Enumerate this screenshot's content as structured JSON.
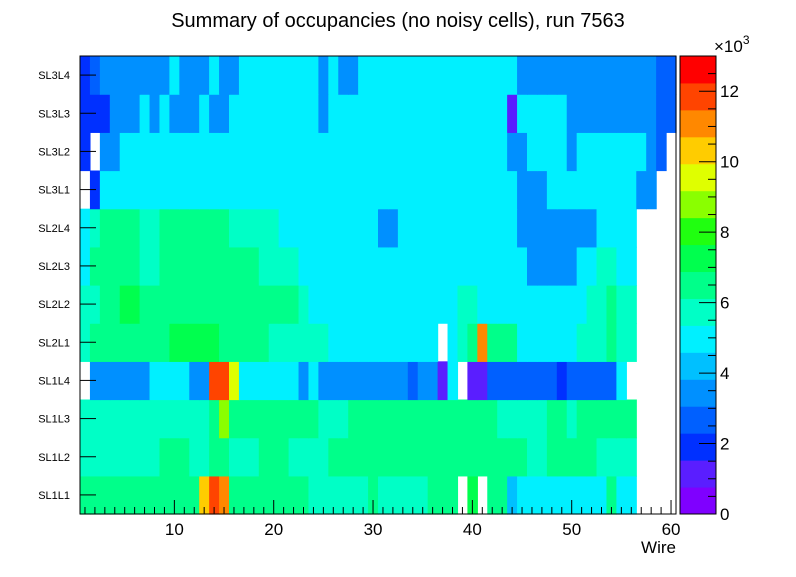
{
  "chart_data": {
    "type": "heatmap",
    "title": "Summary of occupancies (no noisy cells), run 7563",
    "xlabel": "Wire",
    "ylabel": "",
    "xlim": [
      0.5,
      60.5
    ],
    "x_ticks": [
      "10",
      "20",
      "30",
      "40",
      "50",
      "60"
    ],
    "x_tick_values": [
      10,
      20,
      30,
      40,
      50,
      60
    ],
    "y_categories": [
      "SL1L1",
      "SL1L2",
      "SL1L3",
      "SL1L4",
      "SL2L1",
      "SL2L2",
      "SL2L3",
      "SL2L4",
      "SL3L1",
      "SL3L2",
      "SL3L3",
      "SL3L4"
    ],
    "colorbar": {
      "min": 0,
      "max": 13,
      "tick_labels": [
        "0",
        "2",
        "4",
        "6",
        "8",
        "10",
        "12"
      ],
      "tick_values": [
        0,
        2,
        4,
        6,
        8,
        10,
        12
      ],
      "exponent_base": "×10",
      "exponent_power": "3",
      "palette": [
        "#7f00ff",
        "#5a1eff",
        "#0030ff",
        "#0060ff",
        "#0090ff",
        "#00c0ff",
        "#00f0ff",
        "#00ffc6",
        "#00ff8a",
        "#00ff4e",
        "#20ff10",
        "#8aff00",
        "#dfff00",
        "#ffcc00",
        "#ff8800",
        "#ff4400",
        "#ff0000"
      ]
    },
    "grid": false,
    "legend": "none",
    "rows": {
      "SL1L1": [
        6.2,
        6.2,
        6.2,
        6.2,
        6.8,
        6.8,
        6.8,
        6.8,
        6.8,
        6.8,
        6.8,
        6.8,
        10.5,
        12.0,
        11.0,
        6.2,
        6.2,
        6.2,
        6.2,
        6.2,
        6.2,
        6.2,
        6.2,
        5.4,
        5.4,
        5.4,
        5.4,
        5.4,
        5.4,
        6.2,
        5.4,
        5.4,
        5.4,
        5.4,
        5.4,
        6.2,
        6.2,
        6.2,
        null,
        7.5,
        null,
        6.2,
        6.2,
        4.5,
        5.2,
        5.2,
        5.2,
        5.2,
        5.2,
        5.2,
        5.2,
        5.2,
        5.2,
        6.2,
        5.2,
        5.2,
        null,
        null,
        null,
        null
      ],
      "SL1L2": [
        5.5,
        5.5,
        5.5,
        5.5,
        5.5,
        5.5,
        5.5,
        5.5,
        6.2,
        6.2,
        6.2,
        5.5,
        5.5,
        6.6,
        6.6,
        5.5,
        5.5,
        5.5,
        6.6,
        6.6,
        6.6,
        5.5,
        5.5,
        5.5,
        5.5,
        6.2,
        6.2,
        6.2,
        6.2,
        6.2,
        6.2,
        6.2,
        6.2,
        6.2,
        6.2,
        6.2,
        6.2,
        6.2,
        6.6,
        6.2,
        6.2,
        6.2,
        6.2,
        6.2,
        6.2,
        5.5,
        5.5,
        6.6,
        6.6,
        6.6,
        6.2,
        6.2,
        5.5,
        5.5,
        5.5,
        5.5,
        null,
        null,
        null,
        null
      ],
      "SL1L3": [
        5.5,
        5.8,
        5.8,
        5.8,
        5.8,
        5.8,
        5.8,
        5.8,
        5.8,
        5.8,
        5.8,
        5.8,
        5.8,
        6.4,
        9.0,
        6.2,
        6.2,
        6.2,
        6.2,
        6.2,
        6.2,
        6.2,
        6.2,
        6.2,
        5.8,
        5.8,
        5.8,
        6.2,
        6.2,
        6.2,
        6.2,
        6.2,
        6.2,
        6.2,
        6.2,
        6.2,
        6.2,
        6.2,
        6.2,
        6.2,
        6.2,
        6.2,
        5.8,
        5.8,
        5.8,
        5.8,
        5.8,
        6.2,
        6.2,
        5.8,
        6.2,
        6.2,
        6.2,
        6.2,
        6.2,
        6.2,
        null,
        null,
        null,
        null
      ],
      "SL1L4": [
        null,
        3.8,
        3.8,
        3.8,
        3.8,
        3.8,
        3.8,
        4.7,
        4.7,
        4.7,
        4.7,
        3.8,
        3.8,
        12.0,
        11.5,
        9.8,
        4.7,
        4.7,
        4.7,
        4.7,
        4.7,
        4.7,
        3.8,
        4.7,
        3.8,
        3.8,
        3.8,
        3.8,
        3.8,
        3.8,
        3.8,
        3.8,
        3.8,
        2.8,
        3.8,
        3.8,
        1.5,
        4.7,
        null,
        1.2,
        1.2,
        2.8,
        2.8,
        2.8,
        2.8,
        2.8,
        2.8,
        2.8,
        1.8,
        2.8,
        2.8,
        2.8,
        2.8,
        2.8,
        4.7,
        null,
        null,
        null,
        null,
        null
      ],
      "SL2L1": [
        5.5,
        6.8,
        6.8,
        6.8,
        6.8,
        6.8,
        6.2,
        6.2,
        6.2,
        7.0,
        7.0,
        7.0,
        7.0,
        7.0,
        6.2,
        6.2,
        6.2,
        6.2,
        6.2,
        5.5,
        5.5,
        5.5,
        5.5,
        5.5,
        5.5,
        4.8,
        4.8,
        4.8,
        4.8,
        4.8,
        4.8,
        4.8,
        4.8,
        4.8,
        4.8,
        4.8,
        null,
        5.0,
        5.5,
        6.2,
        11.0,
        6.2,
        6.2,
        6.2,
        4.8,
        4.8,
        4.8,
        4.8,
        4.8,
        4.8,
        5.5,
        5.5,
        5.5,
        6.2,
        5.5,
        5.5,
        null,
        null,
        null,
        null
      ],
      "SL2L2": [
        5.5,
        5.8,
        6.2,
        6.2,
        7.0,
        7.0,
        6.2,
        6.2,
        6.5,
        6.2,
        6.2,
        6.5,
        6.5,
        6.5,
        6.5,
        6.5,
        6.5,
        6.5,
        6.5,
        6.5,
        6.2,
        6.2,
        5.5,
        4.8,
        4.8,
        4.8,
        4.8,
        4.8,
        4.8,
        4.8,
        4.8,
        4.8,
        4.8,
        4.8,
        4.8,
        4.8,
        4.8,
        4.8,
        5.5,
        5.5,
        4.8,
        4.8,
        4.8,
        4.8,
        4.8,
        4.8,
        4.8,
        4.8,
        4.8,
        4.8,
        4.8,
        5.5,
        5.5,
        6.2,
        5.5,
        5.5,
        null,
        null,
        null,
        null
      ],
      "SL2L3": [
        5.2,
        6.2,
        6.2,
        6.2,
        6.2,
        6.2,
        5.8,
        5.8,
        6.2,
        6.2,
        6.2,
        6.2,
        6.2,
        6.2,
        6.2,
        6.2,
        6.2,
        6.2,
        5.8,
        5.8,
        5.8,
        5.8,
        4.8,
        4.8,
        4.8,
        4.8,
        4.8,
        4.8,
        4.8,
        4.8,
        4.8,
        4.8,
        4.8,
        4.8,
        4.8,
        4.8,
        4.8,
        4.8,
        4.8,
        4.8,
        4.8,
        4.8,
        4.8,
        4.8,
        4.8,
        3.8,
        3.8,
        3.8,
        3.8,
        3.8,
        4.8,
        4.8,
        5.5,
        5.5,
        4.8,
        4.8,
        null,
        null,
        null,
        null
      ],
      "SL2L4": [
        5.2,
        5.8,
        6.2,
        6.2,
        6.2,
        6.2,
        5.8,
        5.8,
        6.2,
        6.2,
        6.2,
        6.2,
        6.2,
        6.2,
        6.2,
        5.8,
        5.8,
        5.8,
        5.8,
        5.8,
        5.2,
        5.2,
        4.8,
        4.8,
        4.8,
        4.8,
        4.8,
        4.8,
        4.8,
        4.8,
        3.8,
        3.8,
        4.8,
        4.8,
        4.8,
        4.8,
        4.8,
        4.8,
        4.8,
        4.8,
        4.8,
        4.8,
        4.8,
        4.8,
        3.8,
        3.8,
        3.8,
        3.8,
        3.8,
        3.8,
        3.8,
        3.8,
        4.8,
        4.8,
        4.8,
        4.8,
        null,
        null,
        null,
        null
      ],
      "SL3L1": [
        null,
        2.2,
        4.8,
        4.8,
        4.8,
        4.8,
        4.8,
        4.8,
        4.8,
        4.8,
        4.8,
        4.8,
        4.8,
        4.8,
        4.8,
        4.8,
        4.8,
        5.3,
        5.3,
        5.3,
        4.8,
        4.8,
        4.8,
        4.8,
        4.8,
        4.8,
        4.8,
        4.8,
        4.8,
        5.3,
        4.8,
        4.8,
        5.3,
        4.8,
        4.8,
        4.8,
        4.8,
        5.3,
        5.3,
        4.8,
        4.8,
        4.8,
        4.8,
        4.8,
        3.8,
        3.8,
        3.8,
        4.8,
        4.8,
        4.8,
        4.8,
        4.8,
        4.8,
        4.8,
        4.8,
        4.8,
        3.8,
        3.8,
        null,
        null
      ],
      "SL3L2": [
        2.2,
        null,
        3.8,
        3.8,
        4.8,
        4.8,
        4.8,
        4.8,
        4.8,
        4.8,
        4.8,
        4.8,
        4.8,
        4.8,
        4.8,
        4.8,
        4.8,
        4.8,
        4.8,
        4.8,
        4.8,
        4.8,
        4.8,
        4.8,
        4.8,
        4.8,
        4.8,
        4.8,
        4.8,
        4.8,
        4.8,
        4.8,
        4.8,
        4.8,
        4.8,
        4.8,
        4.8,
        4.8,
        4.8,
        4.8,
        4.8,
        4.8,
        4.8,
        3.8,
        3.8,
        4.8,
        4.8,
        4.8,
        4.8,
        3.8,
        4.8,
        4.8,
        4.8,
        4.8,
        4.8,
        4.8,
        4.8,
        3.8,
        2.8,
        null
      ],
      "SL3L3": [
        2.2,
        2.2,
        2.2,
        3.8,
        3.8,
        3.8,
        4.8,
        3.8,
        4.8,
        3.8,
        3.8,
        3.8,
        4.8,
        3.8,
        3.8,
        4.8,
        4.8,
        4.8,
        4.8,
        4.8,
        4.8,
        4.8,
        4.8,
        4.8,
        3.8,
        4.8,
        4.8,
        4.8,
        4.8,
        4.8,
        4.8,
        4.8,
        4.8,
        4.8,
        4.8,
        4.8,
        4.8,
        4.8,
        4.8,
        4.8,
        4.8,
        4.8,
        4.8,
        1.0,
        4.8,
        4.8,
        4.8,
        4.8,
        4.8,
        3.8,
        3.8,
        3.8,
        3.8,
        3.8,
        3.8,
        3.8,
        3.8,
        3.8,
        2.8,
        2.8
      ],
      "SL3L4": [
        2.2,
        2.8,
        3.8,
        3.8,
        3.8,
        3.8,
        3.8,
        3.8,
        3.8,
        4.8,
        3.8,
        3.8,
        3.8,
        4.8,
        3.8,
        3.8,
        4.8,
        4.8,
        4.8,
        4.8,
        4.8,
        4.8,
        4.8,
        4.8,
        3.8,
        4.8,
        3.8,
        3.8,
        4.8,
        4.8,
        4.8,
        4.8,
        4.8,
        4.8,
        4.8,
        4.8,
        4.8,
        4.8,
        4.8,
        4.8,
        4.8,
        4.8,
        4.8,
        4.8,
        3.8,
        3.8,
        3.8,
        3.8,
        3.8,
        3.8,
        3.8,
        3.8,
        3.8,
        3.8,
        3.8,
        3.8,
        3.8,
        3.8,
        2.8,
        2.8
      ]
    }
  }
}
